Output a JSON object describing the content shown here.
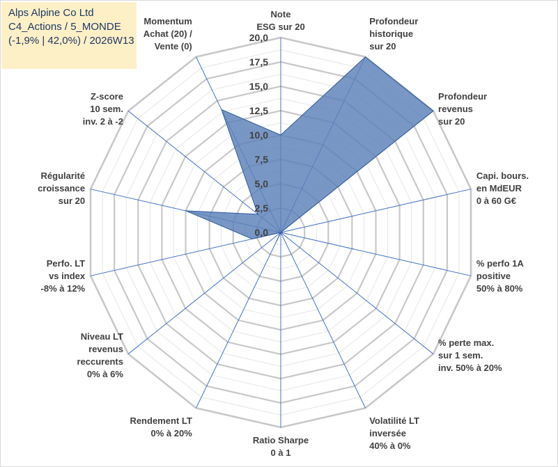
{
  "header": {
    "line1": "Alps Alpine Co Ltd",
    "line2": "C4_Actions / 5_MONDE",
    "line3": "(-1,9% | 42,0%) / 2026W13"
  },
  "colors": {
    "fill": "#5b80b8",
    "stroke": "#2e5a9c",
    "spoke": "#4472c4",
    "grid": "#bfbfbf",
    "box": "#fdf0c7"
  },
  "chart_data": {
    "type": "radar",
    "range": [
      0,
      20
    ],
    "tick_labels": [
      "0,0",
      "2,5",
      "5,0",
      "7,5",
      "10,0",
      "12,5",
      "15,0",
      "17,5",
      "20,0"
    ],
    "axes": [
      {
        "lines": [
          "Note",
          "ESG sur 20"
        ],
        "value": 10.0
      },
      {
        "lines": [
          "Profondeur",
          "historique",
          "sur 20"
        ],
        "value": 20.0
      },
      {
        "lines": [
          "Profondeur",
          "revenus",
          "sur 20"
        ],
        "value": 20.0
      },
      {
        "lines": [
          "Capi. bours.",
          "en MdEUR",
          "0 à 60 G€"
        ],
        "value": 0.0
      },
      {
        "lines": [
          "% perfo 1A",
          "positive",
          "50% à 80%"
        ],
        "value": 0.0
      },
      {
        "lines": [
          "% perte max.",
          "sur 1 sem.",
          "inv. 50% à 20%"
        ],
        "value": 0.0
      },
      {
        "lines": [
          "Volatilité LT",
          "inversée",
          "40% à 0%"
        ],
        "value": 0.0
      },
      {
        "lines": [
          "Ratio Sharpe",
          "0 à 1"
        ],
        "value": 0.0
      },
      {
        "lines": [
          "Rendement LT",
          "0% à 20%"
        ],
        "value": 1.0
      },
      {
        "lines": [
          "Niveau LT",
          "revenus",
          "reccurents",
          "0% à 6%"
        ],
        "value": 0.0
      },
      {
        "lines": [
          "Perfo. LT",
          "vs index",
          "-8% à 12%"
        ],
        "value": 3.0
      },
      {
        "lines": [
          "Régularité",
          "croissance",
          "sur 20"
        ],
        "value": 10.0
      },
      {
        "lines": [
          "Z-score",
          "10 sem.",
          "inv. 2 à -2"
        ],
        "value": 3.0
      },
      {
        "lines": [
          "Momentum",
          "Achat (20) /",
          "Vente (0)"
        ],
        "value": 14.0
      }
    ]
  }
}
